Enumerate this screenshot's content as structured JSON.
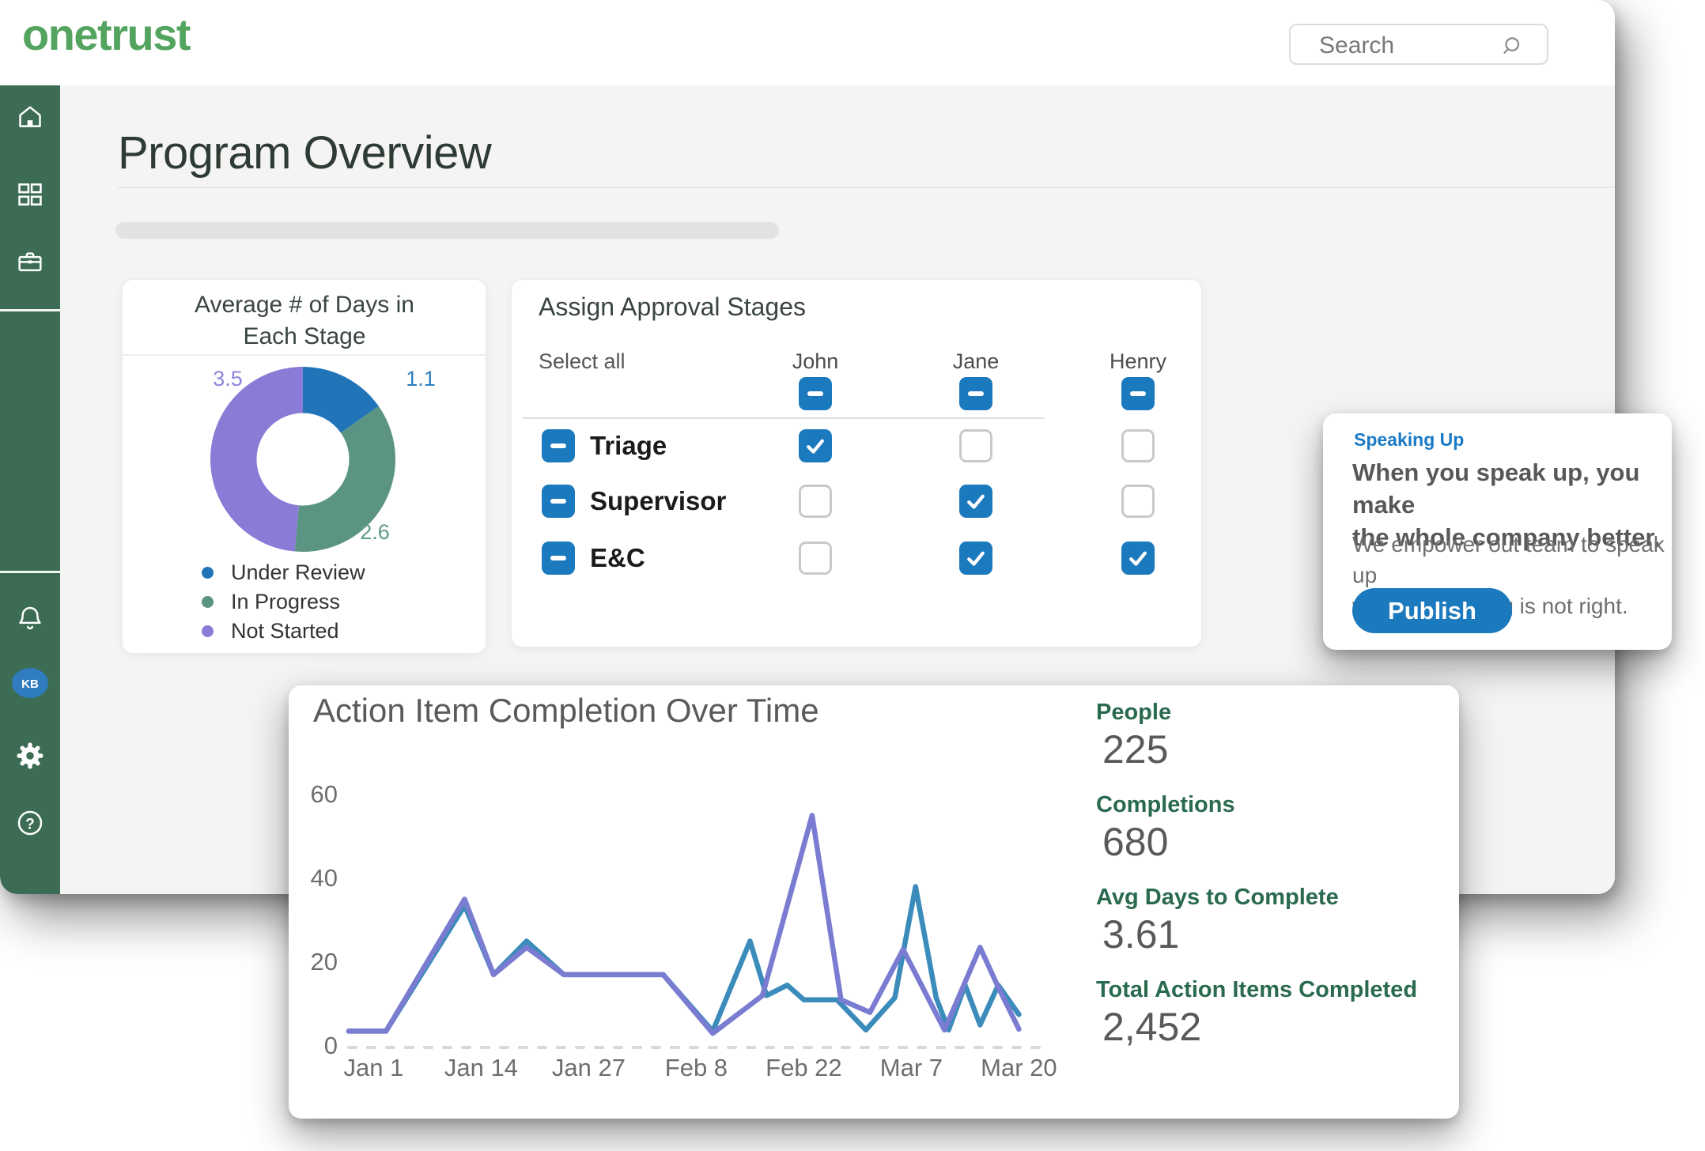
{
  "brand": {
    "logo_text": "onetrust"
  },
  "header": {
    "search_placeholder": "Search"
  },
  "sidebar": {
    "avatar_initials": "KB"
  },
  "page": {
    "title": "Program Overview"
  },
  "colors": {
    "sidebar_green": "#3C6C53",
    "logo_green": "#53A45F",
    "accent_blue": "#1B79BE",
    "stat_label_green": "#2A6A4F"
  },
  "cards": {
    "stage_days": {
      "title": "Average # of Days in Each Stage"
    },
    "approvals": {
      "title": "Assign Approval Stages",
      "select_all_label": "Select all",
      "people": [
        "John",
        "Jane",
        "Henry"
      ],
      "stages": [
        {
          "name": "Triage",
          "assignments": [
            true,
            false,
            false
          ]
        },
        {
          "name": "Supervisor",
          "assignments": [
            false,
            true,
            false
          ]
        },
        {
          "name": "E&C",
          "assignments": [
            false,
            true,
            true
          ]
        }
      ]
    },
    "speaking_up": {
      "eyebrow": "Speaking Up",
      "heading_line1": "When you speak up, you make",
      "heading_line2": "the whole company better.",
      "body_line1": "We empower out team to speak up",
      "body_line2": "when something is not right.",
      "cta_label": "Publish"
    },
    "completion": {
      "title": "Action Item Completion Over Time",
      "stats": [
        {
          "label": "People",
          "value": "225"
        },
        {
          "label": "Completions",
          "value": "680"
        },
        {
          "label": "Avg Days to Complete",
          "value": "3.61"
        },
        {
          "label": "Total Action Items Completed",
          "value": "2,452"
        }
      ]
    }
  },
  "chart_data": [
    {
      "type": "pie",
      "subtype": "donut",
      "title": "Average # of Days in Each Stage",
      "labels": [
        "Under Review",
        "In Progress",
        "Not Started"
      ],
      "values": [
        1.1,
        2.6,
        3.5
      ],
      "colors": [
        "#2274B9",
        "#5B9483",
        "#8A7BD7"
      ],
      "legend_position": "bottom",
      "start_angle_deg": -90,
      "direction": "clockwise"
    },
    {
      "type": "line",
      "title": "Action Item Completion Over Time",
      "xlabel": "",
      "ylabel": "",
      "ylim": [
        0,
        60
      ],
      "y_ticks": [
        0,
        20,
        40,
        60
      ],
      "x_tick_labels": [
        "Jan 1",
        "Jan 14",
        "Jan 27",
        "Feb 8",
        "Feb 22",
        "Mar 7",
        "Mar 20"
      ],
      "x_tick_days": [
        0,
        13,
        26,
        39,
        52,
        65,
        78
      ],
      "grid": "dotted zero baseline only",
      "legend": "none",
      "series": [
        {
          "name": "completions-teal",
          "color": "#3B8CBB",
          "points": [
            [
              -3,
              3.5
            ],
            [
              1.5,
              3.5
            ],
            [
              11,
              33.5
            ],
            [
              14.5,
              17
            ],
            [
              18.5,
              25
            ],
            [
              23,
              17
            ],
            [
              35,
              17
            ],
            [
              41,
              3.5
            ],
            [
              45.5,
              25
            ],
            [
              47.5,
              12
            ],
            [
              50,
              14.5
            ],
            [
              52,
              11
            ],
            [
              56,
              11
            ],
            [
              59.5,
              3.8
            ],
            [
              63,
              11.5
            ],
            [
              65.5,
              38
            ],
            [
              68,
              11.5
            ],
            [
              69.5,
              3.8
            ],
            [
              71.5,
              14.5
            ],
            [
              73.3,
              5
            ],
            [
              75.5,
              14.5
            ],
            [
              78,
              7.5
            ]
          ]
        },
        {
          "name": "action-items-purple",
          "color": "#7A7CD1",
          "points": [
            [
              -3,
              3.5
            ],
            [
              1.5,
              3.5
            ],
            [
              11,
              35
            ],
            [
              14.5,
              17
            ],
            [
              18.5,
              23.5
            ],
            [
              23,
              17
            ],
            [
              35,
              17
            ],
            [
              41,
              3
            ],
            [
              47,
              12
            ],
            [
              53,
              55
            ],
            [
              56.5,
              11
            ],
            [
              60,
              8
            ],
            [
              64,
              23
            ],
            [
              69,
              3.8
            ],
            [
              73.3,
              23.5
            ],
            [
              75.5,
              14
            ],
            [
              78,
              4
            ]
          ]
        }
      ]
    }
  ]
}
